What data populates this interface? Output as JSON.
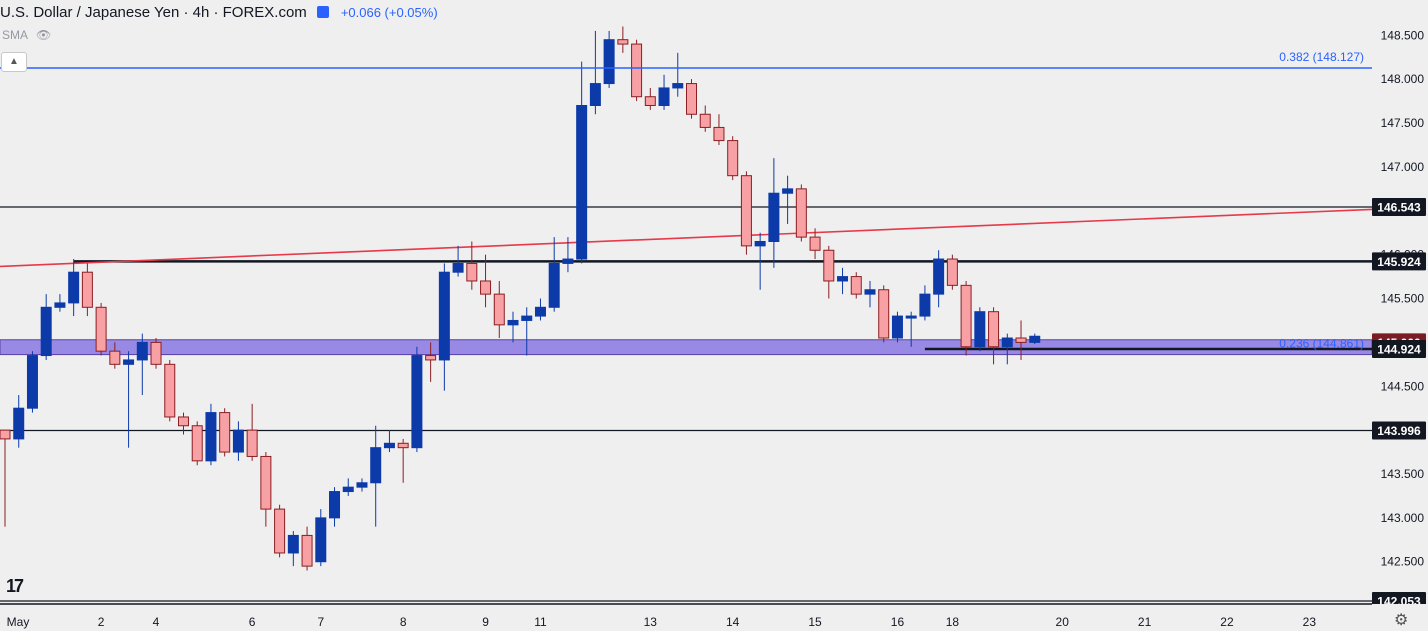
{
  "header": {
    "symbol_title": "U.S. Dollar / Japanese Yen · 4h · FOREX.com",
    "change": "+0.066 (+0.05%)",
    "indicator": "SMA"
  },
  "colors": {
    "up": "#0d3aa9",
    "down": "#f7a1a5",
    "down_border": "#c0392b",
    "fib": "#2962ff",
    "trend": "#e6394a",
    "zone": "#7b68e0"
  },
  "chart_data": {
    "type": "candlestick",
    "x_ticks": [
      {
        "label": "May",
        "bar": 0
      },
      {
        "label": "2",
        "bar": 7
      },
      {
        "label": "4",
        "bar": 11
      },
      {
        "label": "6",
        "bar": 18
      },
      {
        "label": "7",
        "bar": 23
      },
      {
        "label": "8",
        "bar": 29
      },
      {
        "label": "9",
        "bar": 35
      },
      {
        "label": "11",
        "bar": 39
      },
      {
        "label": "13",
        "bar": 47
      },
      {
        "label": "14",
        "bar": 53
      },
      {
        "label": "15",
        "bar": 59
      },
      {
        "label": "16",
        "bar": 65
      },
      {
        "label": "18",
        "bar": 69
      },
      {
        "label": "20",
        "bar": 77
      },
      {
        "label": "21",
        "bar": 83
      },
      {
        "label": "22",
        "bar": 89
      },
      {
        "label": "23",
        "bar": 95
      }
    ],
    "y_ticks": [
      "142.500",
      "143.000",
      "143.500",
      "144.500",
      "145.500",
      "146.000",
      "147.000",
      "147.500",
      "148.000",
      "148.500"
    ],
    "ylim": [
      141.95,
      148.72
    ],
    "horizontal_levels": [
      {
        "label": "146.543",
        "value": 146.543
      },
      {
        "label": "145.924",
        "value": 145.924
      },
      {
        "label": "145.000",
        "value": 145.0
      },
      {
        "label": "144.924",
        "value": 144.924
      },
      {
        "label": "143.996",
        "value": 143.996
      },
      {
        "label": "142.053",
        "value": 142.053
      }
    ],
    "fib_levels": [
      {
        "label": "0.382 (148.127)",
        "value": 148.127
      },
      {
        "label": "0.236 (144.861)",
        "value": 144.861
      }
    ],
    "zone": {
      "from": 144.861,
      "to": 145.03
    },
    "trendline": {
      "start": {
        "bar": -0.5,
        "y": 145.865
      },
      "end": {
        "bar": 100.2,
        "y": 146.52
      }
    },
    "candles": [
      [
        144.0,
        143.9,
        144.0,
        142.9
      ],
      [
        143.9,
        144.25,
        144.4,
        143.8
      ],
      [
        144.25,
        144.85,
        144.9,
        144.2
      ],
      [
        144.85,
        145.4,
        145.55,
        144.8
      ],
      [
        145.4,
        145.45,
        145.55,
        145.35
      ],
      [
        145.45,
        145.8,
        145.95,
        145.3
      ],
      [
        145.8,
        145.4,
        145.9,
        145.3
      ],
      [
        145.4,
        144.9,
        145.45,
        144.85
      ],
      [
        144.9,
        144.75,
        145.0,
        144.7
      ],
      [
        144.75,
        144.8,
        144.9,
        143.8
      ],
      [
        144.8,
        145.0,
        145.1,
        144.4
      ],
      [
        145.0,
        144.75,
        145.05,
        144.7
      ],
      [
        144.75,
        144.15,
        144.8,
        144.1
      ],
      [
        144.15,
        144.05,
        144.2,
        143.95
      ],
      [
        144.05,
        143.65,
        144.1,
        143.6
      ],
      [
        143.65,
        144.2,
        144.3,
        143.6
      ],
      [
        144.2,
        143.75,
        144.25,
        143.7
      ],
      [
        143.75,
        144.0,
        144.1,
        143.65
      ],
      [
        144.0,
        143.7,
        144.3,
        143.65
      ],
      [
        143.7,
        143.1,
        143.75,
        142.9
      ],
      [
        143.1,
        142.6,
        143.15,
        142.55
      ],
      [
        142.6,
        142.8,
        142.85,
        142.45
      ],
      [
        142.8,
        142.45,
        142.9,
        142.4
      ],
      [
        142.5,
        143.0,
        143.1,
        142.45
      ],
      [
        143.0,
        143.3,
        143.35,
        142.9
      ],
      [
        143.3,
        143.35,
        143.45,
        143.25
      ],
      [
        143.35,
        143.4,
        143.45,
        143.3
      ],
      [
        143.4,
        143.8,
        144.05,
        142.9
      ],
      [
        143.8,
        143.85,
        144.0,
        143.75
      ],
      [
        143.85,
        143.8,
        143.9,
        143.4
      ],
      [
        143.8,
        144.85,
        144.95,
        143.75
      ],
      [
        144.85,
        144.8,
        145.0,
        144.55
      ],
      [
        144.8,
        145.8,
        145.9,
        144.45
      ],
      [
        145.8,
        145.9,
        146.1,
        145.75
      ],
      [
        145.9,
        145.7,
        146.15,
        145.6
      ],
      [
        145.7,
        145.55,
        146.0,
        145.4
      ],
      [
        145.55,
        145.2,
        145.7,
        145.05
      ],
      [
        145.2,
        145.25,
        145.35,
        145.0
      ],
      [
        145.25,
        145.3,
        145.4,
        144.85
      ],
      [
        145.3,
        145.4,
        145.5,
        145.25
      ],
      [
        145.4,
        145.9,
        146.2,
        145.35
      ],
      [
        145.9,
        145.95,
        146.2,
        145.8
      ],
      [
        145.95,
        147.7,
        148.2,
        145.9
      ],
      [
        147.7,
        147.95,
        148.55,
        147.6
      ],
      [
        147.95,
        148.45,
        148.55,
        147.9
      ],
      [
        148.45,
        148.4,
        148.6,
        148.3
      ],
      [
        148.4,
        147.8,
        148.45,
        147.75
      ],
      [
        147.8,
        147.7,
        147.9,
        147.65
      ],
      [
        147.7,
        147.9,
        148.05,
        147.65
      ],
      [
        147.9,
        147.95,
        148.3,
        147.8
      ],
      [
        147.95,
        147.6,
        148.0,
        147.55
      ],
      [
        147.6,
        147.45,
        147.7,
        147.4
      ],
      [
        147.45,
        147.3,
        147.6,
        147.25
      ],
      [
        147.3,
        146.9,
        147.35,
        146.85
      ],
      [
        146.9,
        146.1,
        146.95,
        146.0
      ],
      [
        146.1,
        146.15,
        146.25,
        145.6
      ],
      [
        146.15,
        146.7,
        147.1,
        145.85
      ],
      [
        146.7,
        146.75,
        146.9,
        146.35
      ],
      [
        146.75,
        146.2,
        146.8,
        146.15
      ],
      [
        146.2,
        146.05,
        146.3,
        145.95
      ],
      [
        146.05,
        145.7,
        146.1,
        145.5
      ],
      [
        145.7,
        145.75,
        145.85,
        145.55
      ],
      [
        145.75,
        145.55,
        145.8,
        145.5
      ],
      [
        145.55,
        145.6,
        145.7,
        145.4
      ],
      [
        145.6,
        145.05,
        145.65,
        145.0
      ],
      [
        145.05,
        145.3,
        145.35,
        145.0
      ],
      [
        145.3,
        145.3,
        145.35,
        144.95
      ],
      [
        145.3,
        145.55,
        145.65,
        145.25
      ],
      [
        145.55,
        145.95,
        146.05,
        145.4
      ],
      [
        145.95,
        145.65,
        146.0,
        145.6
      ],
      [
        145.65,
        144.95,
        145.7,
        144.85
      ],
      [
        144.95,
        145.35,
        145.4,
        144.9
      ],
      [
        145.35,
        144.95,
        145.4,
        144.75
      ],
      [
        144.95,
        145.05,
        145.1,
        144.75
      ],
      [
        145.05,
        145.0,
        145.25,
        144.8
      ],
      [
        145.0,
        145.07,
        145.1,
        144.98
      ]
    ]
  }
}
